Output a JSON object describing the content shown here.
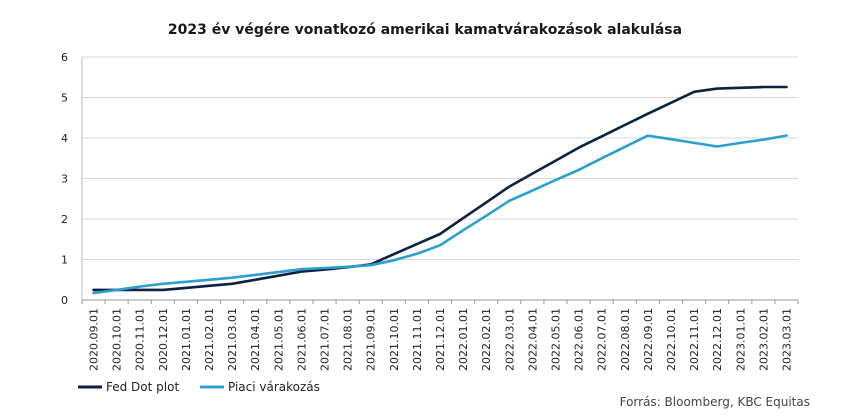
{
  "chart_data": {
    "type": "line",
    "title": "2023 év végére vonatkozó amerikai kamatvárakozások alakulása",
    "source": "Forrás: Bloomberg, KBC Equitas",
    "x": [
      "2020.09.01",
      "2020.10.01",
      "2020.11.01",
      "2020.12.01",
      "2021.01.01",
      "2021.02.01",
      "2021.03.01",
      "2021.04.01",
      "2021.05.01",
      "2021.06.01",
      "2021.07.01",
      "2021.08.01",
      "2021.09.01",
      "2021.10.01",
      "2021.11.01",
      "2021.12.01",
      "2022.01.01",
      "2022.02.01",
      "2022.03.01",
      "2022.04.01",
      "2022.05.01",
      "2022.06.01",
      "2022.07.01",
      "2022.08.01",
      "2022.09.01",
      "2022.10.01",
      "2022.11.01",
      "2022.12.01",
      "2023.01.01",
      "2023.02.01",
      "2023.03.01"
    ],
    "ylim": [
      0,
      6
    ],
    "yticks": [
      0,
      1,
      2,
      3,
      4,
      5,
      6
    ],
    "grid": true,
    "legend": "bottom-left",
    "series": [
      {
        "name": "Fed Dot plot",
        "color": "#0d2240",
        "values": [
          0.25,
          0.25,
          0.25,
          0.25,
          0.3,
          0.35,
          0.4,
          0.5,
          0.6,
          0.7,
          0.75,
          0.81,
          0.88,
          1.13,
          1.38,
          1.63,
          2.02,
          2.41,
          2.8,
          3.12,
          3.44,
          3.76,
          4.04,
          4.32,
          4.6,
          4.87,
          5.14,
          5.22,
          5.24,
          5.26,
          5.26
        ]
      },
      {
        "name": "Piaci várakozás",
        "color": "#2a9fd0",
        "values": [
          0.17,
          0.25,
          0.33,
          0.4,
          0.45,
          0.5,
          0.55,
          0.62,
          0.69,
          0.76,
          0.79,
          0.82,
          0.86,
          0.98,
          1.14,
          1.35,
          1.72,
          2.08,
          2.45,
          2.7,
          2.96,
          3.21,
          3.5,
          3.78,
          4.06,
          3.97,
          3.88,
          3.79,
          3.88,
          3.96,
          4.06
        ]
      }
    ]
  }
}
